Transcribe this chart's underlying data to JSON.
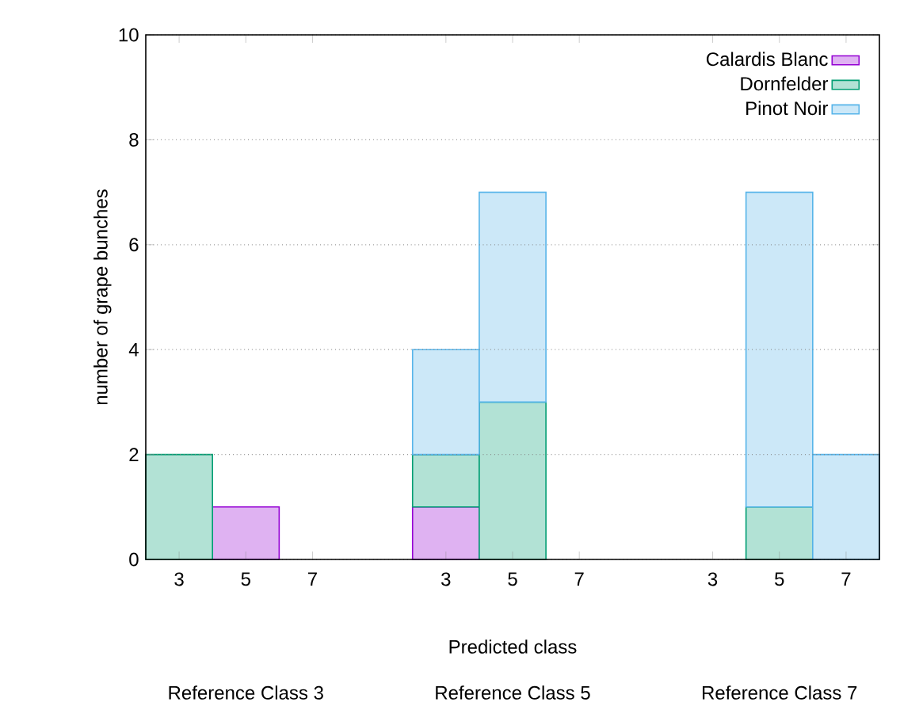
{
  "chart_data": {
    "type": "bar",
    "stacked": true,
    "categories": [
      "3",
      "5",
      "7",
      null,
      "3",
      "5",
      "7",
      null,
      "3",
      "5",
      "7"
    ],
    "series": [
      {
        "name": "Calardis Blanc",
        "color": "#9400d3",
        "values": [
          0,
          1,
          0,
          null,
          1,
          0,
          0,
          null,
          0,
          0,
          0
        ]
      },
      {
        "name": "Dornfelder",
        "color": "#009e73",
        "values": [
          2,
          0,
          0,
          null,
          1,
          3,
          0,
          null,
          0,
          1,
          0
        ]
      },
      {
        "name": "Pinot Noir",
        "color": "#56b4e9",
        "values": [
          0,
          0,
          0,
          null,
          2,
          4,
          0,
          null,
          0,
          6,
          2
        ]
      }
    ],
    "xlabel": "Predicted class",
    "ylabel": "number of grape bunches",
    "annotations": [
      "Reference Class 3",
      "Reference Class 5",
      "Reference Class 7"
    ],
    "ylim": [
      0,
      10
    ],
    "yticks": [
      0,
      2,
      4,
      6,
      8,
      10
    ],
    "grid": "y",
    "legend": "top right"
  }
}
